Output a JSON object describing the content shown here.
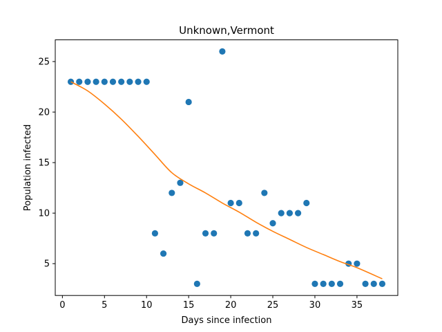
{
  "chart_data": {
    "type": "scatter",
    "title": "Unknown,Vermont",
    "xlabel": "Days since infection",
    "ylabel": "Population infected",
    "xlim": [
      -0.85,
      39.85
    ],
    "ylim": [
      1.85,
      27.15
    ],
    "xticks": [
      0,
      5,
      10,
      15,
      20,
      25,
      30,
      35
    ],
    "yticks": [
      5,
      10,
      15,
      20,
      25
    ],
    "grid": false,
    "legend": "none",
    "series": [
      {
        "type": "scatter",
        "color": "#1f77b4",
        "x": [
          1,
          2,
          3,
          4,
          5,
          6,
          7,
          8,
          9,
          10,
          11,
          12,
          13,
          14,
          15,
          16,
          17,
          18,
          19,
          20,
          21,
          22,
          23,
          24,
          25,
          26,
          27,
          28,
          29,
          30,
          31,
          32,
          33,
          34,
          35,
          36,
          37,
          38
        ],
        "y": [
          23,
          23,
          23,
          23,
          23,
          23,
          23,
          23,
          23,
          23,
          8,
          6,
          12,
          13,
          21,
          3,
          8,
          8,
          26,
          11,
          11,
          8,
          8,
          12,
          9,
          10,
          10,
          10,
          11,
          3,
          3,
          3,
          3,
          5,
          5,
          3,
          3,
          3
        ]
      },
      {
        "type": "line",
        "color": "#ff7f0e",
        "x": [
          1,
          3,
          5,
          7,
          9,
          11,
          13,
          15,
          17,
          19,
          21,
          23,
          25,
          27,
          29,
          31,
          33,
          35,
          38
        ],
        "y": [
          23.0,
          22.1,
          20.8,
          19.3,
          17.6,
          15.8,
          14.0,
          12.9,
          12.0,
          11.0,
          10.1,
          9.1,
          8.2,
          7.4,
          6.6,
          5.9,
          5.2,
          4.6,
          3.5
        ]
      }
    ]
  }
}
